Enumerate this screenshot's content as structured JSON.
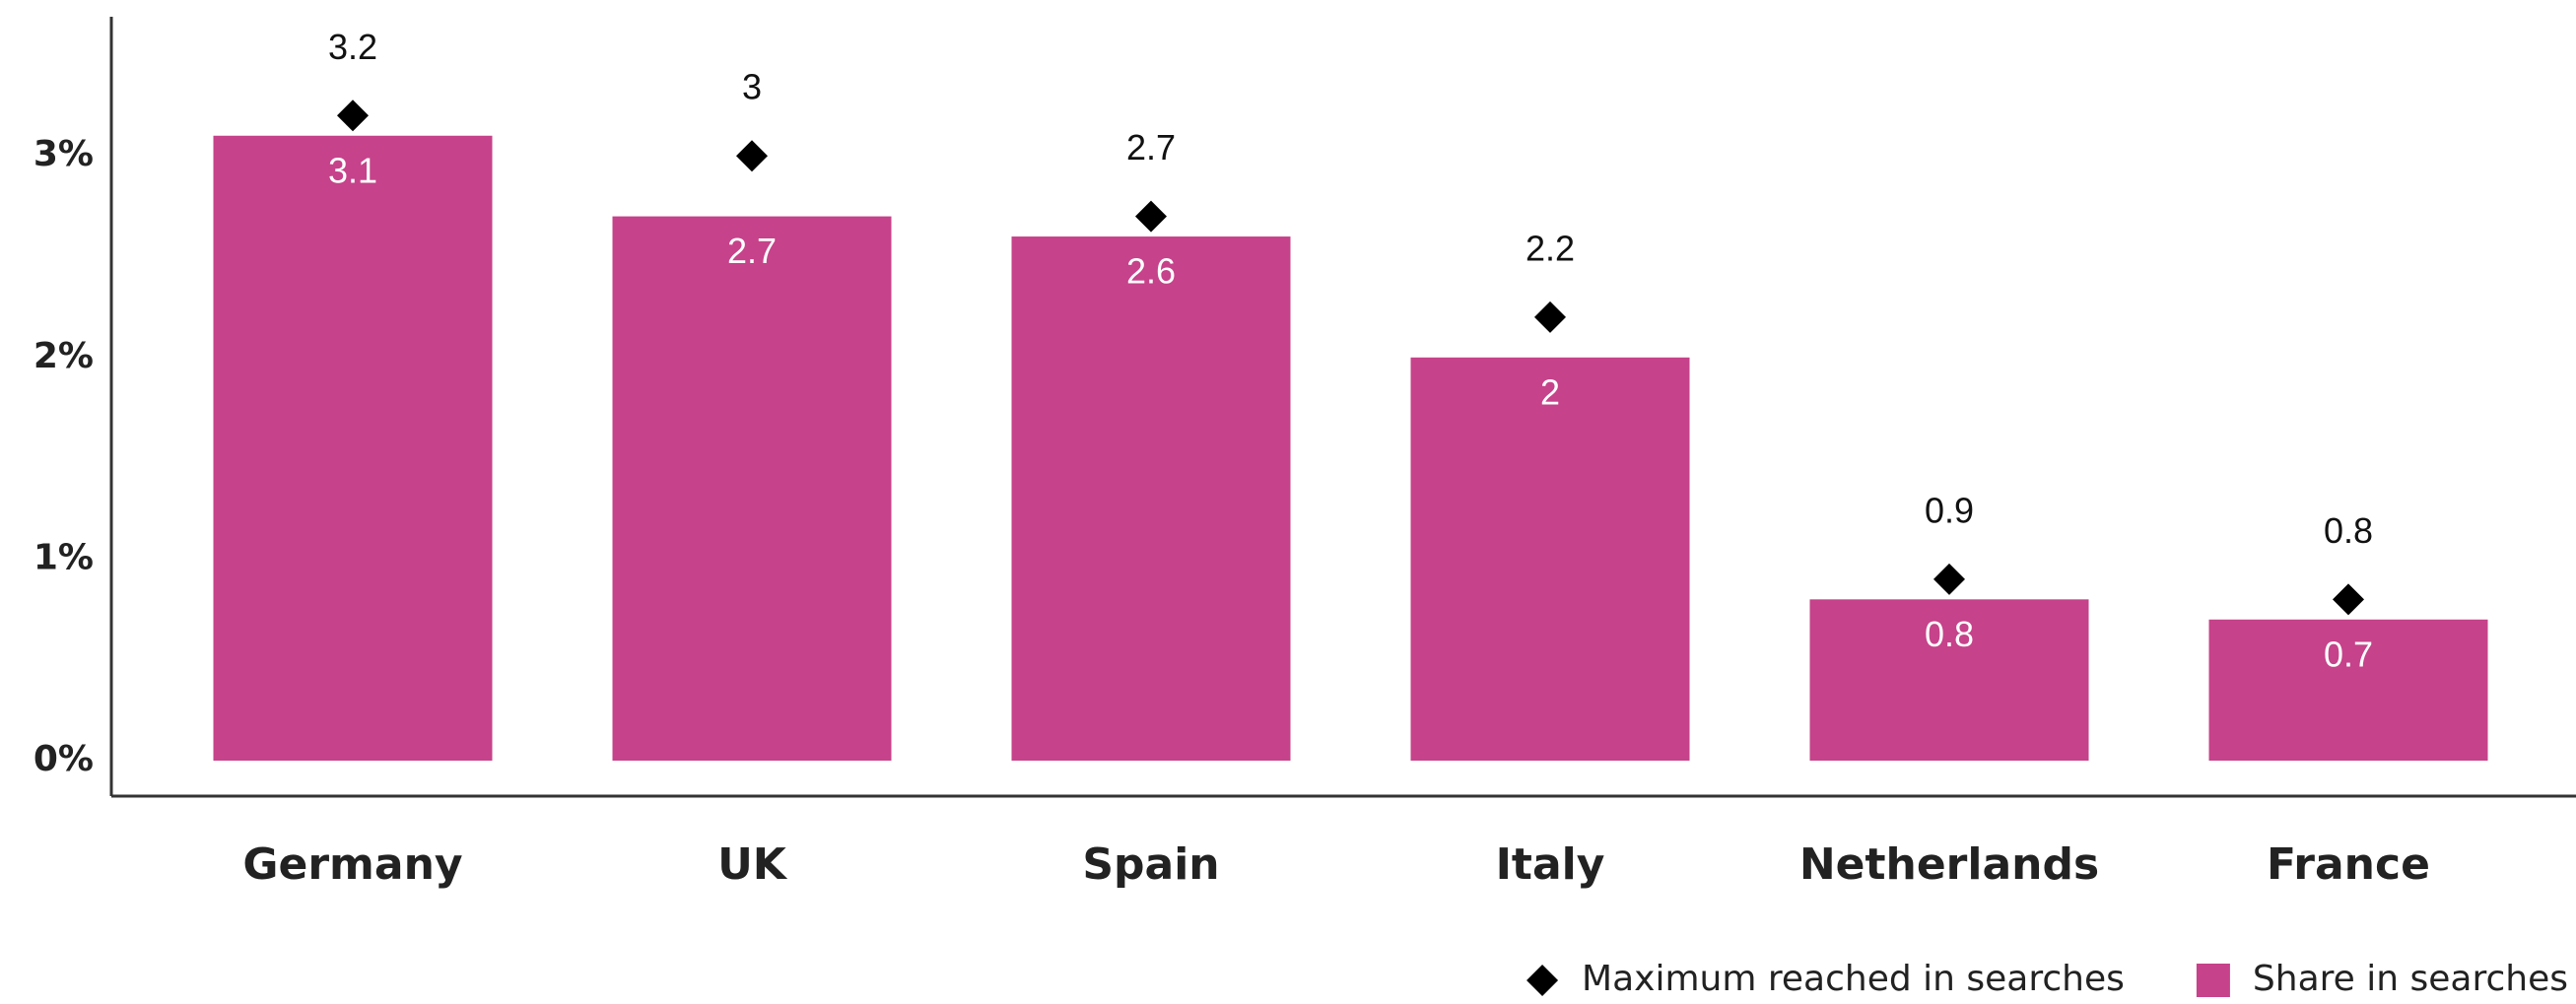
{
  "chart_data": {
    "type": "bar",
    "categories": [
      "Germany",
      "UK",
      "Spain",
      "Italy",
      "Netherlands",
      "France"
    ],
    "series": [
      {
        "name": "Maximum reached in searches",
        "type": "scatter",
        "marker": "diamond",
        "color": "#000000",
        "values": [
          3.2,
          3,
          2.7,
          2.2,
          0.9,
          0.8
        ]
      },
      {
        "name": "Share in searches",
        "type": "bar",
        "color": "#c6428a",
        "values": [
          3.1,
          2.7,
          2.6,
          2,
          0.8,
          0.7
        ]
      }
    ],
    "ylim": [
      0,
      3.7
    ],
    "yticks": [
      {
        "value": 0,
        "label": "0%"
      },
      {
        "value": 1,
        "label": "1%"
      },
      {
        "value": 2,
        "label": "2%"
      },
      {
        "value": 3,
        "label": "3%"
      }
    ],
    "grid": false,
    "legend": "bottom-right"
  }
}
